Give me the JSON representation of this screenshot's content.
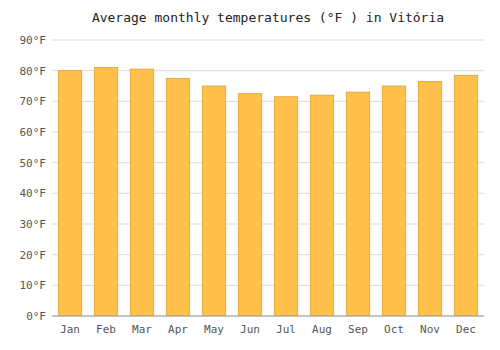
{
  "chart_data": {
    "type": "bar",
    "title": "Average monthly temperatures (°F ) in Vitória",
    "categories": [
      "Jan",
      "Feb",
      "Mar",
      "Apr",
      "May",
      "Jun",
      "Jul",
      "Aug",
      "Sep",
      "Oct",
      "Nov",
      "Dec"
    ],
    "values": [
      80.0,
      81.0,
      80.5,
      77.5,
      75.0,
      72.5,
      71.5,
      72.0,
      73.0,
      75.0,
      76.5,
      78.5
    ],
    "color": "#FFC04C",
    "ylim": [
      0,
      90
    ],
    "yticks": [
      {
        "value": 0,
        "label": "0°F"
      },
      {
        "value": 10,
        "label": "10°F"
      },
      {
        "value": 20,
        "label": "20°F"
      },
      {
        "value": 30,
        "label": "30°F"
      },
      {
        "value": 40,
        "label": "40°F"
      },
      {
        "value": 50,
        "label": "50°F"
      },
      {
        "value": 60,
        "label": "60°F"
      },
      {
        "value": 70,
        "label": "70°F"
      },
      {
        "value": 80,
        "label": "80°F"
      },
      {
        "value": 90,
        "label": "90°F"
      }
    ],
    "grid": true
  }
}
